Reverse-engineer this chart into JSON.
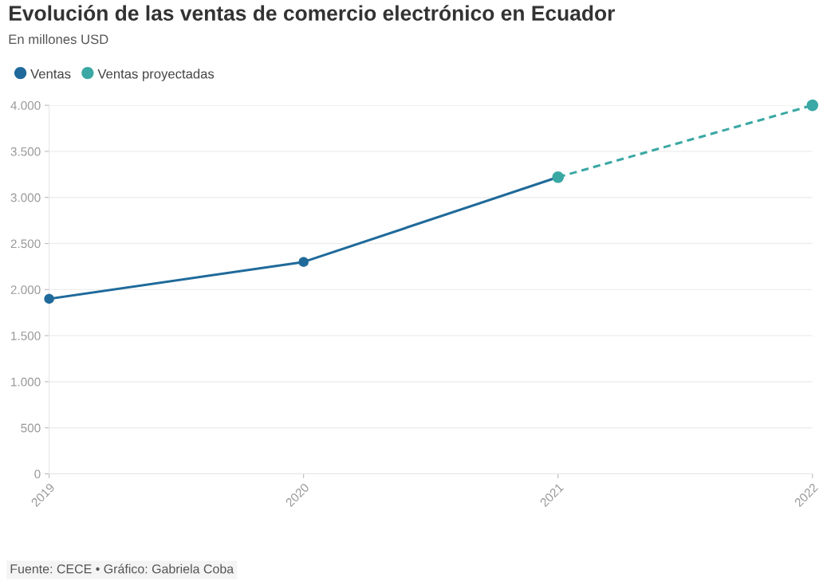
{
  "chart_data": {
    "type": "line",
    "title": "Evolución de las ventas de comercio electrónico en Ecuador",
    "subtitle": "En millones USD",
    "series": [
      {
        "name": "Ventas",
        "color": "#1f6a9a",
        "x": [
          2019,
          2020,
          2021
        ],
        "values": [
          1900,
          2300,
          3220
        ],
        "line_style": "solid",
        "colors": [
          "#1f6a9a",
          "#1f6a9a",
          "#3aa8a4"
        ]
      },
      {
        "name": "Ventas proyectadas",
        "color": "#3aa8a4",
        "x": [
          2021,
          2022
        ],
        "values": [
          3220,
          4000
        ],
        "line_style": "dashed"
      }
    ],
    "xlim": [
      2019,
      2022
    ],
    "xticks": [
      2019,
      2020,
      2021,
      2022
    ],
    "ylim": [
      0,
      4000
    ],
    "yticks": [
      {
        "value": 0,
        "label": "0"
      },
      {
        "value": 500,
        "label": "500"
      },
      {
        "value": 1000,
        "label": "1.000"
      },
      {
        "value": 1500,
        "label": "1.500"
      },
      {
        "value": 2000,
        "label": "2.000"
      },
      {
        "value": 2500,
        "label": "2.500"
      },
      {
        "value": 3000,
        "label": "3.000"
      },
      {
        "value": 3500,
        "label": "3.500"
      },
      {
        "value": 4000,
        "label": "4.000"
      }
    ],
    "grid": "y",
    "legend": "top left",
    "marker": "circle",
    "annotations": [
      "Fuente: CECE • Gráfico: Gabriela Coba"
    ]
  }
}
